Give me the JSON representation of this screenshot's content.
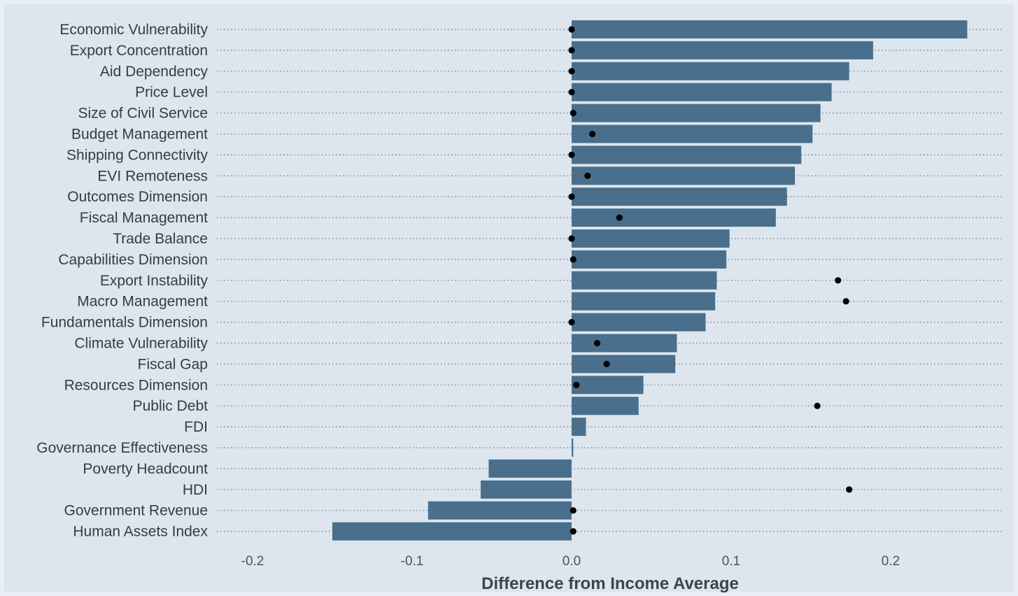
{
  "chart_data": {
    "type": "bar",
    "orientation": "horizontal",
    "title": "",
    "xlabel": "Difference from Income Average",
    "ylabel": "",
    "xlim": [
      -0.2,
      0.27
    ],
    "xticks": [
      -0.2,
      -0.1,
      0.0,
      0.1,
      0.2
    ],
    "xtick_labels": [
      "-0.2",
      "-0.1",
      "0.0",
      "0.1",
      "0.2"
    ],
    "grid": "dotted horizontal guide per category",
    "categories": [
      "Economic Vulnerability",
      "Export Concentration",
      "Aid Dependency",
      "Price Level",
      "Size of Civil Service",
      "Budget Management",
      "Shipping Connectivity",
      "EVI Remoteness",
      "Outcomes Dimension",
      "Fiscal Management",
      "Trade Balance",
      "Capabilities Dimension",
      "Export Instability",
      "Macro Management",
      "Fundamentals Dimension",
      "Climate Vulnerability",
      "Fiscal Gap",
      "Resources Dimension",
      "Public Debt",
      "FDI",
      "Governance Effectiveness",
      "Poverty Headcount",
      "HDI",
      "Government Revenue",
      "Human Assets Index"
    ],
    "series": [
      {
        "type": "bar",
        "values": [
          0.248,
          0.189,
          0.174,
          0.163,
          0.156,
          0.151,
          0.144,
          0.14,
          0.135,
          0.128,
          0.099,
          0.097,
          0.091,
          0.09,
          0.084,
          0.066,
          0.065,
          0.045,
          0.042,
          0.009,
          0.001,
          -0.052,
          -0.057,
          -0.09,
          -0.15
        ]
      },
      {
        "type": "point",
        "values": [
          0.0,
          0.0,
          0.0,
          0.0,
          0.001,
          0.013,
          0.0,
          0.01,
          0.0,
          0.03,
          0.0,
          0.001,
          0.167,
          0.172,
          0.0,
          0.016,
          0.022,
          0.003,
          0.154,
          null,
          null,
          null,
          0.174,
          0.001,
          0.001
        ]
      }
    ],
    "colors": {
      "background": "#dde6ee",
      "bar": "#4a6f8c",
      "point": "#000000",
      "grid": "#6a7580"
    }
  }
}
